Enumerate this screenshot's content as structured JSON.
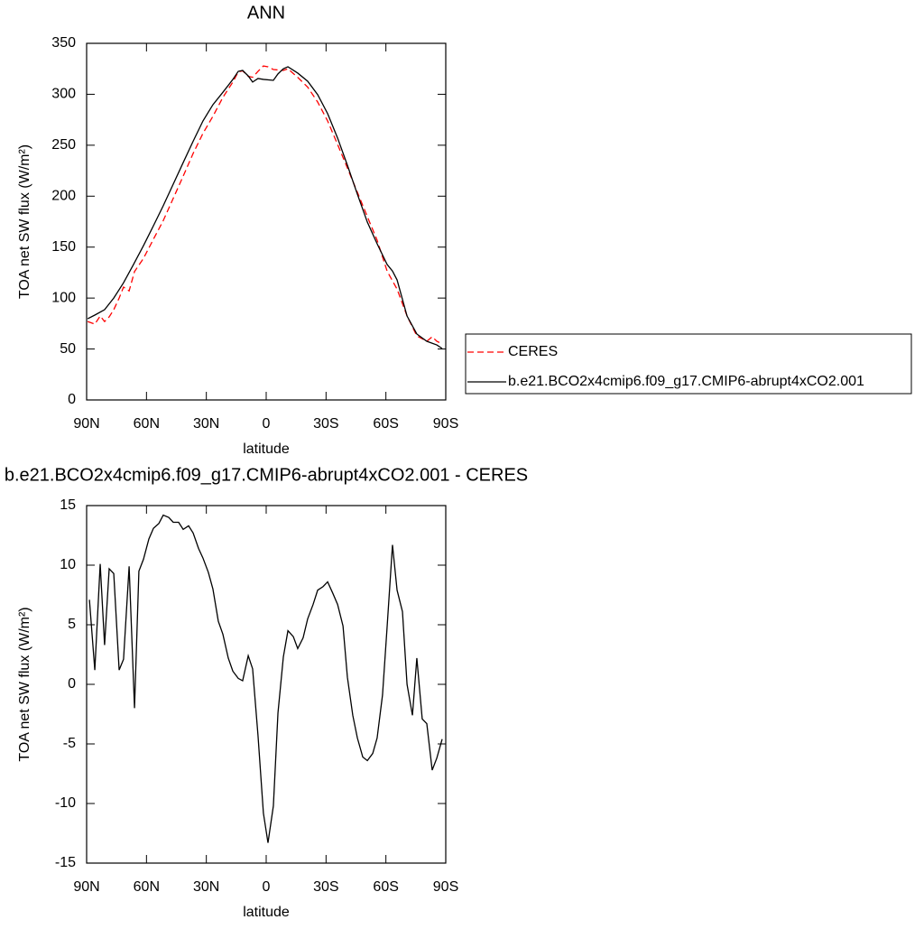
{
  "chart_data": [
    {
      "type": "line",
      "title": "ANN",
      "xlabel": "latitude",
      "ylabel": "TOA net SW flux (W/m²)",
      "xlim": [
        90,
        -90
      ],
      "xticks": [
        {
          "value": 90,
          "label": "90N"
        },
        {
          "value": 60,
          "label": "60N"
        },
        {
          "value": 30,
          "label": "30N"
        },
        0,
        {
          "value": -30,
          "label": "30S"
        },
        {
          "value": -60,
          "label": "60S"
        },
        {
          "value": -90,
          "label": "90S"
        }
      ],
      "ylim": [
        0,
        350
      ],
      "yticks": [
        0,
        50,
        100,
        150,
        200,
        250,
        300,
        350
      ],
      "legend": "right",
      "series": [
        {
          "name": "CERES",
          "color": "#ff0000",
          "dashed": true,
          "x": [
            89.5,
            85.9,
            83.2,
            81,
            78.7,
            76.4,
            73.7,
            71.5,
            68.7,
            66,
            61.5,
            56.5,
            51.6,
            46.6,
            41.6,
            36.6,
            31.7,
            26.7,
            21.7,
            16.7,
            14,
            11.8,
            9,
            6.8,
            4.1,
            1.4,
            -0.9,
            -3.6,
            -8.6,
            -10.9,
            -15.8,
            -20.8,
            -25.8,
            -30.8,
            -35.8,
            -40.7,
            -45.7,
            -50.7,
            -55.6,
            -60.6,
            -65.6,
            -70.6,
            -75.5,
            -80.5,
            -83.2,
            -85.5,
            -88.2
          ],
          "values": [
            77,
            74.4,
            82.4,
            77,
            81.5,
            88.6,
            100,
            110.8,
            107,
            126,
            139,
            157.8,
            176,
            197.8,
            219.7,
            242,
            261.6,
            278.4,
            297,
            312,
            322,
            323,
            317.6,
            316.7,
            322.5,
            327.8,
            327,
            324.3,
            323.4,
            325,
            316.6,
            307,
            292.4,
            273.8,
            250.7,
            227.7,
            203.8,
            179.9,
            156.8,
            126.5,
            108.8,
            82.4,
            62.9,
            57.6,
            62,
            57.6,
            55
          ]
        },
        {
          "name": "b.e21.BCO2x4cmip6.f09_g17.CMIP6-abrupt4xCO2.001",
          "color": "#000000",
          "dashed": false,
          "x": [
            89.5,
            85.9,
            81,
            76.4,
            71.5,
            66.5,
            61.5,
            56.5,
            51.6,
            46.6,
            41.6,
            36.6,
            31.7,
            26.7,
            21.7,
            16.7,
            14,
            11.8,
            9,
            6.8,
            4.1,
            1.4,
            -3.6,
            -5.9,
            -8.6,
            -10.9,
            -15.8,
            -20.8,
            -25.8,
            -30.8,
            -35.8,
            -40.7,
            -45.7,
            -50.7,
            -55.6,
            -60.6,
            -63.3,
            -65.6,
            -70.6,
            -75.5,
            -80.5,
            -85.5,
            -88.2
          ],
          "values": [
            79.7,
            83.3,
            88.6,
            100,
            115,
            133,
            151.5,
            171,
            190.6,
            211.8,
            233,
            254,
            273.8,
            289.8,
            302,
            314.6,
            322.5,
            323.4,
            318,
            312,
            315.5,
            314.6,
            313.7,
            320,
            325,
            327,
            320.8,
            312.8,
            299.6,
            281,
            257,
            230.4,
            202,
            174.5,
            153.3,
            133,
            126.5,
            117.8,
            82.4,
            64.7,
            57.6,
            54,
            50.5
          ]
        }
      ]
    },
    {
      "type": "line",
      "title": "b.e21.BCO2x4cmip6.f09_g17.CMIP6-abrupt4xCO2.001 - CERES",
      "xlabel": "latitude",
      "ylabel": "TOA net SW flux (W/m²)",
      "xlim": [
        90,
        -90
      ],
      "xticks": [
        {
          "value": 90,
          "label": "90N"
        },
        {
          "value": 60,
          "label": "60N"
        },
        {
          "value": 30,
          "label": "30N"
        },
        0,
        {
          "value": -30,
          "label": "30S"
        },
        {
          "value": -60,
          "label": "60S"
        },
        {
          "value": -90,
          "label": "90S"
        }
      ],
      "ylim": [
        -15,
        15
      ],
      "yticks": [
        -15,
        -10,
        -5,
        0,
        5,
        10,
        15
      ],
      "series": [
        {
          "color": "#000000",
          "dashed": false,
          "x": [
            88.6,
            85.9,
            83.2,
            81,
            78.7,
            76.4,
            73.7,
            71.5,
            68.7,
            66,
            63.8,
            61.5,
            58.8,
            56.5,
            53.8,
            51.6,
            48.8,
            46.6,
            43.9,
            41.6,
            38.9,
            36.6,
            33.9,
            31.7,
            29,
            26.7,
            24,
            21.7,
            19,
            16.7,
            14,
            11.8,
            9,
            6.8,
            4.1,
            1.4,
            -0.9,
            -3.6,
            -5.9,
            -8.6,
            -10.9,
            -13.6,
            -15.8,
            -18.5,
            -20.8,
            -23.5,
            -25.8,
            -28.5,
            -30.8,
            -33.5,
            -35.8,
            -38.5,
            -40.7,
            -43.4,
            -45.7,
            -48.4,
            -50.7,
            -53.4,
            -55.6,
            -58.3,
            -60.6,
            -63.3,
            -65.6,
            -68.3,
            -70.6,
            -73.3,
            -75.5,
            -78.2,
            -80.5,
            -83.2,
            -85.5,
            -88.2
          ],
          "values": [
            7.1,
            1.2,
            10.1,
            3.3,
            9.7,
            9.3,
            1.2,
            2.1,
            9.9,
            -2,
            9.5,
            10.5,
            12.2,
            13.1,
            13.5,
            14.2,
            14,
            13.6,
            13.6,
            13,
            13.3,
            12.7,
            11.4,
            10.6,
            9.4,
            8,
            5.3,
            4.2,
            2.2,
            1.1,
            0.5,
            0.3,
            2.4,
            1.3,
            -4.3,
            -10.8,
            -13.3,
            -10.2,
            -2.4,
            2.3,
            4.5,
            4,
            3,
            3.9,
            5.5,
            6.7,
            7.9,
            8.2,
            8.6,
            7.6,
            6.7,
            4.9,
            0.6,
            -2.6,
            -4.5,
            -6.1,
            -6.4,
            -5.8,
            -4.5,
            -0.9,
            4.8,
            11.7,
            7.9,
            6.1,
            0,
            -2.6,
            2.2,
            -2.9,
            -3.3,
            -7.2,
            -6.2,
            -4.6
          ]
        }
      ]
    }
  ]
}
